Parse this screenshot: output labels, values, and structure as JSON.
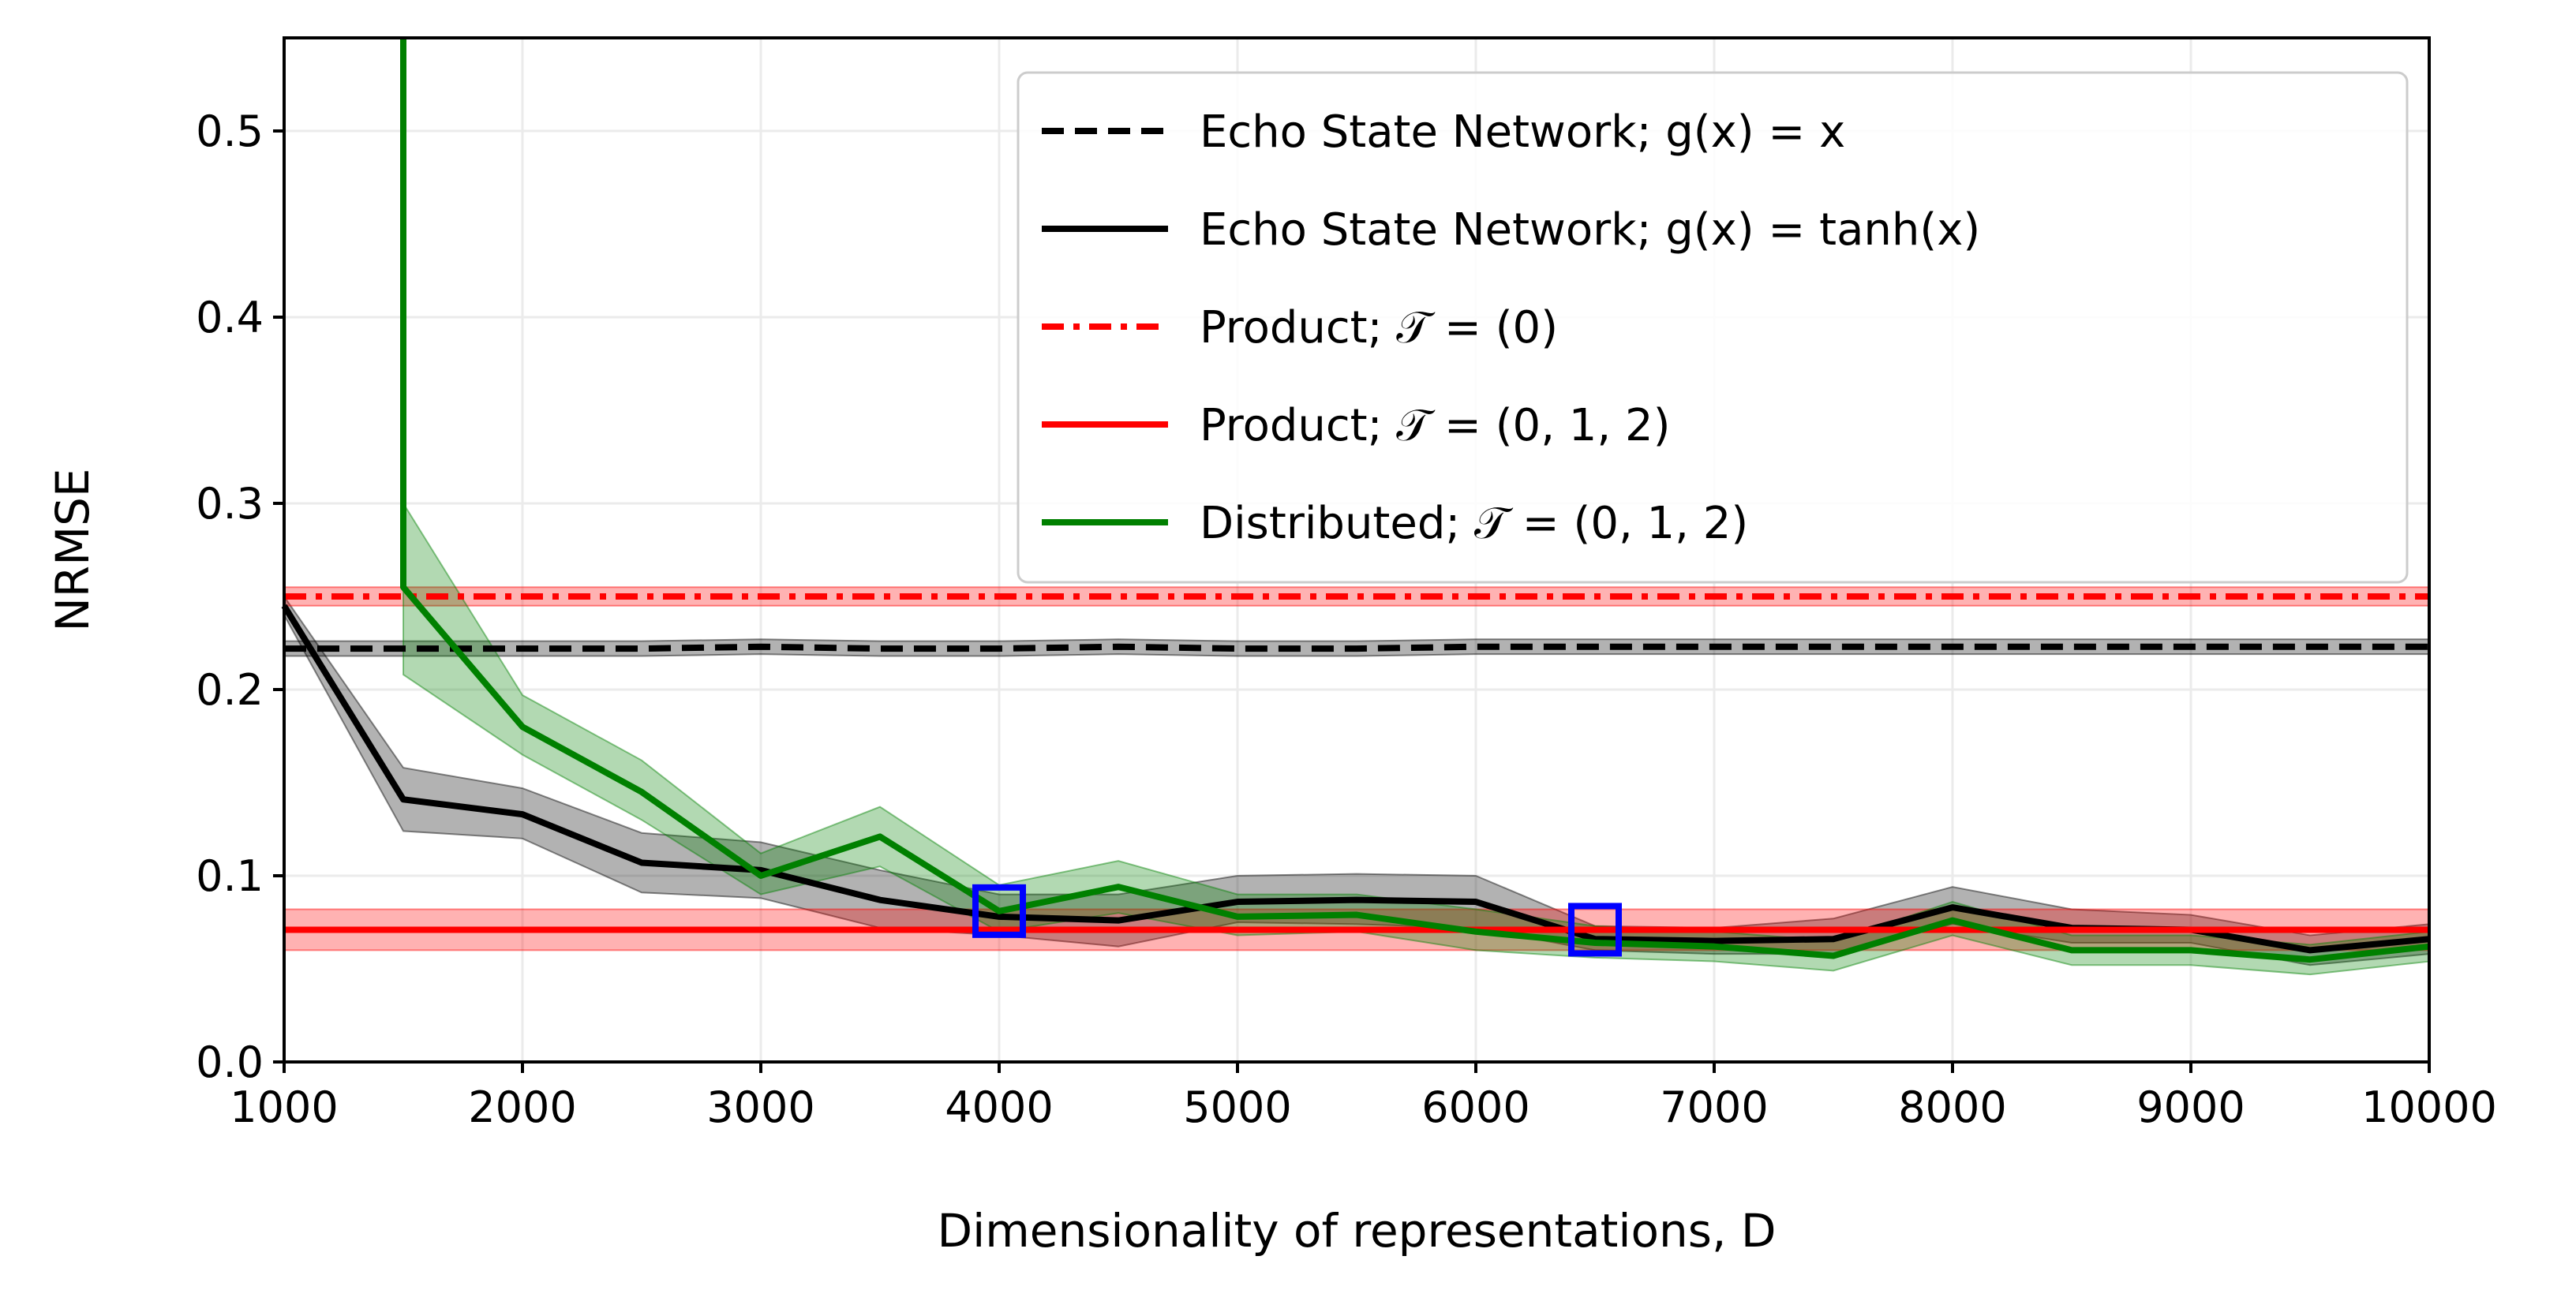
{
  "chart_data": {
    "type": "line",
    "xlabel": "Dimensionality of representations, D",
    "ylabel": "NRMSE",
    "xlim": [
      1000,
      10000
    ],
    "ylim": [
      0,
      0.55
    ],
    "xticks": [
      1000,
      2000,
      3000,
      4000,
      5000,
      6000,
      7000,
      8000,
      9000,
      10000
    ],
    "yticks": [
      0.0,
      0.1,
      0.2,
      0.3,
      0.4,
      0.5
    ],
    "xtick_labels": [
      "1000",
      "2000",
      "3000",
      "4000",
      "5000",
      "6000",
      "7000",
      "8000",
      "9000",
      "10000"
    ],
    "ytick_labels": [
      "0.0",
      "0.1",
      "0.2",
      "0.3",
      "0.4",
      "0.5"
    ],
    "grid": true,
    "legend_position": "top-right",
    "x": [
      1000,
      1500,
      2000,
      2500,
      3000,
      3500,
      4000,
      4500,
      5000,
      5500,
      6000,
      6500,
      7000,
      7500,
      8000,
      8500,
      9000,
      9500,
      10000
    ],
    "series": [
      {
        "name": "Echo State Network; g(x) = x",
        "style": "dashed",
        "color": "#000000",
        "values": [
          0.222,
          0.222,
          0.222,
          0.222,
          0.223,
          0.222,
          0.222,
          0.223,
          0.222,
          0.222,
          0.223,
          0.223,
          0.223,
          0.223,
          0.223,
          0.223,
          0.223,
          0.223,
          0.223
        ],
        "band": 0.004
      },
      {
        "name": "Echo State Network; g(x) = tanh(x)",
        "style": "solid",
        "color": "#000000",
        "values": [
          0.245,
          0.141,
          0.133,
          0.107,
          0.103,
          0.087,
          0.078,
          0.076,
          0.086,
          0.087,
          0.086,
          0.066,
          0.065,
          0.066,
          0.083,
          0.072,
          0.071,
          0.06,
          0.066
        ],
        "lower": [
          0.24,
          0.124,
          0.12,
          0.091,
          0.088,
          0.072,
          0.068,
          0.062,
          0.075,
          0.074,
          0.072,
          0.06,
          0.058,
          0.058,
          0.074,
          0.064,
          0.064,
          0.052,
          0.058
        ],
        "upper": [
          0.25,
          0.158,
          0.147,
          0.123,
          0.118,
          0.103,
          0.09,
          0.09,
          0.1,
          0.101,
          0.1,
          0.073,
          0.072,
          0.077,
          0.094,
          0.082,
          0.079,
          0.068,
          0.074
        ]
      },
      {
        "name": "Product; 𝒯 = (0)",
        "style": "dashdot",
        "color": "#ff0000",
        "values": [
          0.25,
          0.25,
          0.25,
          0.25,
          0.25,
          0.25,
          0.25,
          0.25,
          0.25,
          0.25,
          0.25,
          0.25,
          0.25,
          0.25,
          0.25,
          0.25,
          0.25,
          0.25,
          0.25
        ],
        "band": 0.005
      },
      {
        "name": "Product; 𝒯 = (0, 1, 2)",
        "style": "solid",
        "color": "#ff0000",
        "values": [
          0.071,
          0.071,
          0.071,
          0.071,
          0.071,
          0.071,
          0.071,
          0.071,
          0.071,
          0.071,
          0.071,
          0.071,
          0.071,
          0.071,
          0.071,
          0.071,
          0.071,
          0.071,
          0.071
        ],
        "band": 0.011
      },
      {
        "name": "Distributed; 𝒯 = (0, 1, 2)",
        "style": "solid",
        "color": "#008000",
        "values": [
          null,
          0.255,
          0.18,
          0.145,
          0.1,
          0.121,
          0.081,
          0.094,
          0.078,
          0.079,
          0.07,
          0.064,
          0.062,
          0.057,
          0.076,
          0.06,
          0.06,
          0.055,
          0.062
        ],
        "lower": [
          null,
          0.208,
          0.165,
          0.13,
          0.09,
          0.105,
          0.07,
          0.08,
          0.068,
          0.07,
          0.06,
          0.056,
          0.054,
          0.049,
          0.068,
          0.052,
          0.052,
          0.047,
          0.054
        ],
        "upper": [
          null,
          0.3,
          0.197,
          0.162,
          0.112,
          0.137,
          0.095,
          0.108,
          0.09,
          0.09,
          0.082,
          0.073,
          0.07,
          0.065,
          0.086,
          0.068,
          0.068,
          0.063,
          0.07
        ],
        "spike_top": 0.55
      }
    ],
    "markers": [
      {
        "x": 4000,
        "y": 0.081,
        "shape": "square",
        "color": "#0000ff"
      },
      {
        "x": 6500,
        "y": 0.071,
        "shape": "square",
        "color": "#0000ff"
      }
    ]
  }
}
